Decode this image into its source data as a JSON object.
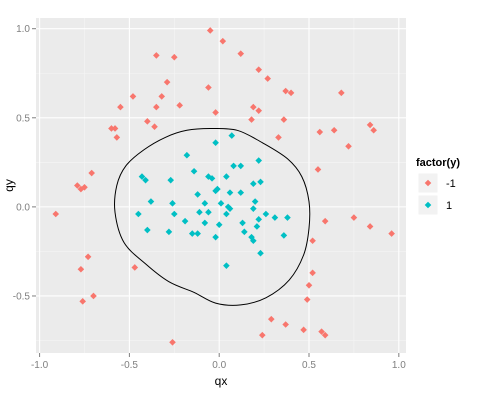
{
  "chart_data": {
    "type": "scatter",
    "xlabel": "qx",
    "ylabel": "qy",
    "xlim": [
      -1.02,
      1.04
    ],
    "ylim": [
      -0.82,
      1.06
    ],
    "xticks": [
      -1.0,
      -0.5,
      0.0,
      0.5,
      1.0
    ],
    "xtick_labels": [
      "-1.0",
      "-0.5",
      "0.0",
      "0.5",
      "1.0"
    ],
    "yticks": [
      -0.5,
      0.0,
      0.5,
      1.0
    ],
    "ytick_labels": [
      "-0.5",
      "0.0",
      "0.5",
      "1.0"
    ],
    "grid": true,
    "legend": {
      "title": "factor(y)",
      "placement": "right"
    },
    "series": [
      {
        "name": "-1",
        "color": "#F8766D",
        "points": [
          [
            -0.05,
            0.99
          ],
          [
            0.02,
            0.93
          ],
          [
            -0.35,
            0.85
          ],
          [
            -0.25,
            0.84
          ],
          [
            0.12,
            0.86
          ],
          [
            0.22,
            0.77
          ],
          [
            0.27,
            0.72
          ],
          [
            -0.29,
            0.7
          ],
          [
            -0.48,
            0.62
          ],
          [
            -0.32,
            0.62
          ],
          [
            -0.22,
            0.57
          ],
          [
            -0.06,
            0.67
          ],
          [
            0.37,
            0.65
          ],
          [
            0.4,
            0.64
          ],
          [
            0.68,
            0.64
          ],
          [
            -0.55,
            0.56
          ],
          [
            0.19,
            0.56
          ],
          [
            -0.35,
            0.56
          ],
          [
            -0.4,
            0.48
          ],
          [
            -0.36,
            0.45
          ],
          [
            -0.6,
            0.44
          ],
          [
            -0.58,
            0.44
          ],
          [
            -0.57,
            0.39
          ],
          [
            0.18,
            0.49
          ],
          [
            0.22,
            0.54
          ],
          [
            0.36,
            0.49
          ],
          [
            -0.02,
            0.53
          ],
          [
            0.64,
            0.43
          ],
          [
            0.56,
            0.42
          ],
          [
            0.84,
            0.46
          ],
          [
            0.86,
            0.43
          ],
          [
            0.72,
            0.34
          ],
          [
            0.33,
            0.39
          ],
          [
            0.55,
            0.21
          ],
          [
            -0.71,
            0.19
          ],
          [
            -0.79,
            0.12
          ],
          [
            -0.75,
            0.11
          ],
          [
            -0.77,
            0.1
          ],
          [
            -0.91,
            -0.04
          ],
          [
            0.59,
            -0.08
          ],
          [
            0.75,
            -0.06
          ],
          [
            0.96,
            -0.15
          ],
          [
            0.84,
            -0.11
          ],
          [
            0.52,
            -0.19
          ],
          [
            -0.73,
            -0.28
          ],
          [
            -0.77,
            -0.35
          ],
          [
            -0.47,
            -0.34
          ],
          [
            0.52,
            -0.37
          ],
          [
            -0.76,
            -0.53
          ],
          [
            -0.7,
            -0.5
          ],
          [
            0.5,
            -0.44
          ],
          [
            0.49,
            -0.52
          ],
          [
            0.29,
            -0.63
          ],
          [
            0.37,
            -0.66
          ],
          [
            0.47,
            -0.69
          ],
          [
            0.57,
            -0.7
          ],
          [
            0.59,
            -0.72
          ],
          [
            0.24,
            -0.72
          ],
          [
            -0.26,
            -0.76
          ]
        ]
      },
      {
        "name": "1",
        "color": "#00BFC4",
        "points": [
          [
            0.07,
            0.4
          ],
          [
            -0.18,
            0.29
          ],
          [
            -0.02,
            0.36
          ],
          [
            0.22,
            0.26
          ],
          [
            -0.43,
            0.17
          ],
          [
            -0.41,
            0.15
          ],
          [
            -0.14,
            0.2
          ],
          [
            -0.06,
            0.17
          ],
          [
            -0.04,
            0.16
          ],
          [
            0.04,
            0.17
          ],
          [
            0.08,
            0.23
          ],
          [
            0.12,
            0.23
          ],
          [
            0.19,
            0.13
          ],
          [
            0.23,
            0.14
          ],
          [
            -0.27,
            0.15
          ],
          [
            0.12,
            0.08
          ],
          [
            -0.12,
            0.07
          ],
          [
            -0.08,
            0.02
          ],
          [
            0.01,
            0.02
          ],
          [
            -0.02,
            0.09
          ],
          [
            -0.01,
            0.1
          ],
          [
            0.06,
            0.08
          ],
          [
            0.05,
            0.0
          ],
          [
            -0.26,
            0.02
          ],
          [
            -0.38,
            0.03
          ],
          [
            -0.45,
            -0.04
          ],
          [
            -0.25,
            -0.04
          ],
          [
            -0.11,
            -0.03
          ],
          [
            -0.06,
            -0.03
          ],
          [
            0.04,
            -0.04
          ],
          [
            0.06,
            -0.01
          ],
          [
            0.19,
            -0.01
          ],
          [
            0.2,
            0.03
          ],
          [
            0.22,
            -0.07
          ],
          [
            0.26,
            -0.04
          ],
          [
            0.31,
            -0.06
          ],
          [
            0.38,
            -0.06
          ],
          [
            0.0,
            -0.1
          ],
          [
            -0.15,
            -0.15
          ],
          [
            -0.12,
            -0.15
          ],
          [
            -0.28,
            -0.14
          ],
          [
            -0.4,
            -0.13
          ],
          [
            -0.19,
            -0.08
          ],
          [
            0.14,
            -0.14
          ],
          [
            0.18,
            -0.17
          ],
          [
            0.19,
            -0.19
          ],
          [
            0.13,
            -0.09
          ],
          [
            0.21,
            -0.11
          ],
          [
            0.36,
            -0.16
          ],
          [
            0.04,
            -0.33
          ],
          [
            0.23,
            -0.26
          ],
          [
            -0.02,
            -0.17
          ],
          [
            -0.08,
            -0.09
          ]
        ]
      }
    ],
    "decision_boundary": [
      [
        -0.05,
        0.44
      ],
      [
        0.1,
        0.43
      ],
      [
        0.24,
        0.36
      ],
      [
        0.38,
        0.27
      ],
      [
        0.46,
        0.17
      ],
      [
        0.5,
        0.03
      ],
      [
        0.5,
        -0.12
      ],
      [
        0.47,
        -0.27
      ],
      [
        0.39,
        -0.41
      ],
      [
        0.26,
        -0.51
      ],
      [
        0.12,
        -0.55
      ],
      [
        -0.02,
        -0.54
      ],
      [
        -0.14,
        -0.48
      ],
      [
        -0.28,
        -0.42
      ],
      [
        -0.41,
        -0.32
      ],
      [
        -0.53,
        -0.2
      ],
      [
        -0.58,
        -0.03
      ],
      [
        -0.57,
        0.12
      ],
      [
        -0.52,
        0.23
      ],
      [
        -0.42,
        0.32
      ],
      [
        -0.3,
        0.39
      ],
      [
        -0.18,
        0.43
      ],
      [
        -0.05,
        0.44
      ]
    ]
  }
}
